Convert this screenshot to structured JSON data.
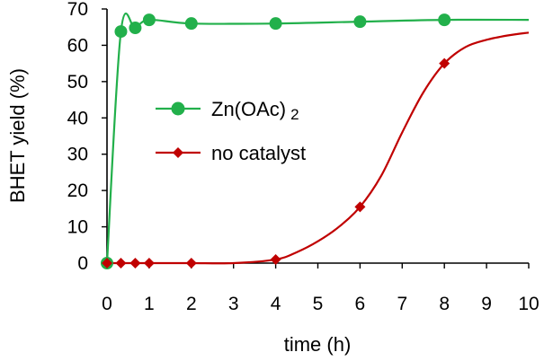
{
  "chart_data": {
    "type": "line",
    "title": "",
    "xlabel": "time (h)",
    "ylabel": "BHET yield (%)",
    "xlim": [
      0,
      10
    ],
    "ylim": [
      0,
      70
    ],
    "xticks": [
      0,
      1,
      2,
      3,
      4,
      5,
      6,
      7,
      8,
      9,
      10
    ],
    "yticks": [
      0,
      10,
      20,
      30,
      40,
      50,
      60,
      70
    ],
    "grid": false,
    "legend_position": "center-left",
    "series": [
      {
        "name": "Zn(OAc)",
        "name_subscript": "2",
        "marker": "circle",
        "color": "#22b04b",
        "x": [
          0,
          0.33,
          0.67,
          1,
          2,
          4,
          6,
          8
        ],
        "y": [
          0,
          63.8,
          64.8,
          67,
          66,
          66,
          66.5,
          67
        ],
        "curve_x": [
          0,
          0.33,
          0.67,
          1,
          2,
          4,
          6,
          8,
          10
        ],
        "curve_y": [
          0,
          63.8,
          64.8,
          67,
          66,
          66,
          66.5,
          67,
          67
        ]
      },
      {
        "name": "no catalyst",
        "marker": "diamond",
        "color": "#c00000",
        "x": [
          0,
          0.33,
          0.67,
          1,
          2,
          4,
          6,
          8
        ],
        "y": [
          0,
          0,
          0,
          0,
          0,
          1,
          15.5,
          55
        ],
        "curve_x": [
          0,
          0.33,
          0.67,
          1,
          2,
          3,
          4,
          4.5,
          5,
          5.5,
          6,
          6.5,
          7,
          7.5,
          8,
          8.5,
          9,
          9.5,
          10
        ],
        "curve_y": [
          0,
          0,
          0,
          0,
          0,
          0,
          1,
          3,
          6,
          10,
          15.5,
          24,
          36,
          47,
          55,
          59.5,
          61.5,
          62.7,
          63.5
        ]
      }
    ]
  }
}
